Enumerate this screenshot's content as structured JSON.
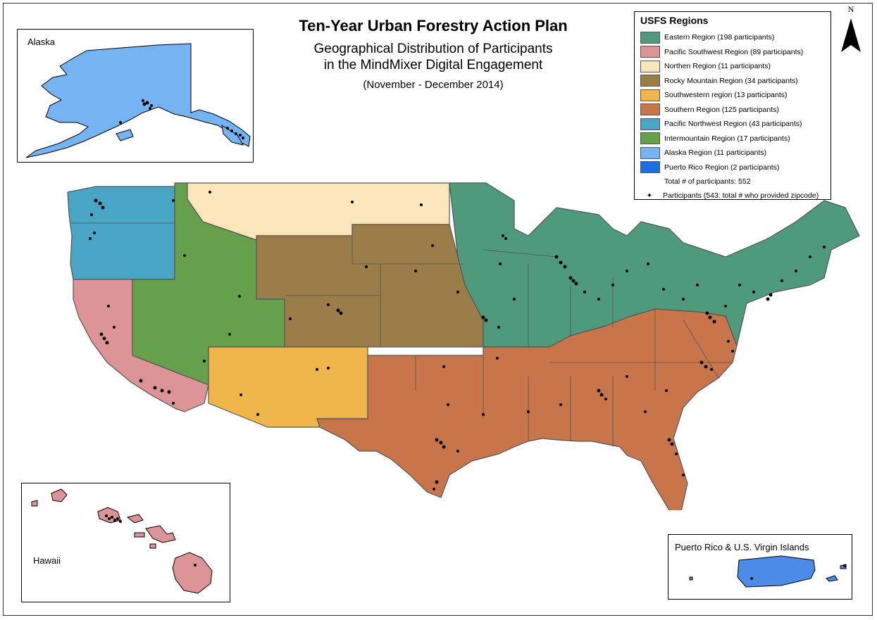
{
  "map": {
    "title": "Ten-Year Urban Forestry Action Plan",
    "subtitle_line1": "Geographical Distribution of Participants",
    "subtitle_line2": "in the MindMixer Digital Engagement",
    "dates": "(November - December 2014)",
    "north_label": "N"
  },
  "insets": {
    "alaska": "Alaska",
    "hawaii": "Hawaii",
    "puerto_rico": "Puerto Rico & U.S. Virgin Islands"
  },
  "legend": {
    "title": "USFS Regions",
    "items": [
      {
        "label": "Eastern Region (198 participants)",
        "color": "#4f9a7c"
      },
      {
        "label": "Pacific Southwest Region (89 participants)",
        "color": "#dc9496"
      },
      {
        "label": "Northen Region (11 participants)",
        "color": "#fbe6bb"
      },
      {
        "label": "Rocky Mountain Region (34 participants)",
        "color": "#9b7d4a"
      },
      {
        "label": "Southwestern region (13 participants)",
        "color": "#f0b64b"
      },
      {
        "label": "Southern Region (125 participants)",
        "color": "#c8754b"
      },
      {
        "label": "Pacific Northwest Region (43 participants)",
        "color": "#49a5c3"
      },
      {
        "label": "Intermountain Region (17 participants)",
        "color": "#66a04b"
      },
      {
        "label": "Alaska Region (11 participants)",
        "color": "#75b3f2"
      },
      {
        "label": "Puerto Rico Region (2 participants)",
        "color": "#1d6ee4"
      }
    ],
    "total": "Total # of participants: 552",
    "participants": "Participants (543: total # who provided zipcode)"
  }
}
